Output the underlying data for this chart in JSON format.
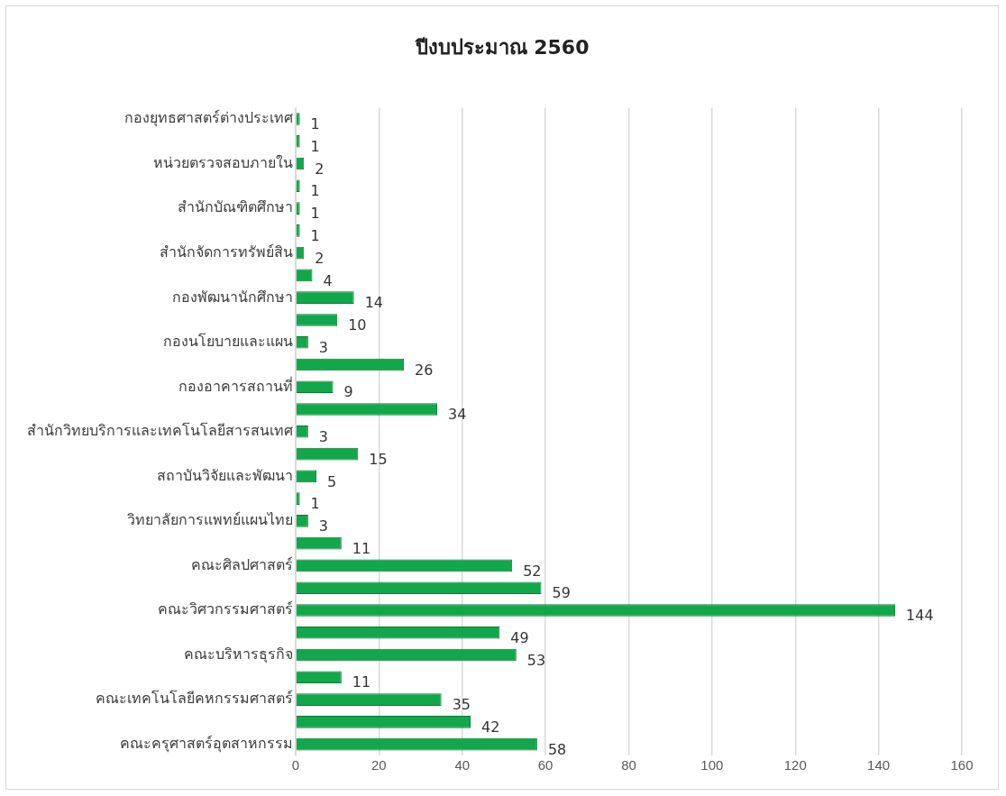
{
  "chart_data": {
    "type": "bar",
    "orientation": "horizontal",
    "title": "ปีงบประมาณ 2560",
    "categories": [
      "กองยุทธศาสตร์ต่างประเทศ",
      null,
      "หน่วยตรวจสอบภายใน",
      null,
      "สำนักบัณฑิตศึกษา",
      null,
      "สำนักจัดการทรัพย์สิน",
      null,
      "กองพัฒนานักศึกษา",
      null,
      "กองนโยบายและแผน",
      null,
      "กองอาคารสถานที่",
      null,
      "สำนักวิทยบริการและเทคโนโลยีสารสนเทศ",
      null,
      "สถาบันวิจัยและพัฒนา",
      null,
      "วิทยาลัยการแพทย์แผนไทย",
      null,
      "คณะศิลปศาสตร์",
      null,
      "คณะวิศวกรรมศาสตร์",
      null,
      "คณะบริหารธุรกิจ",
      null,
      "คณะเทคโนโลยีคหกรรมศาสตร์",
      null,
      "คณะครุศาสตร์อุตสาหกรรม"
    ],
    "values": [
      1,
      1,
      2,
      1,
      1,
      1,
      2,
      4,
      14,
      10,
      3,
      26,
      9,
      34,
      3,
      15,
      5,
      1,
      3,
      11,
      52,
      59,
      144,
      49,
      53,
      11,
      35,
      42,
      58
    ],
    "color": "#12a74a",
    "xlim": [
      0,
      160
    ],
    "xticks": [
      0,
      20,
      40,
      60,
      80,
      100,
      120,
      140,
      160
    ],
    "grid": "x",
    "legend": false,
    "data_labels": true
  }
}
